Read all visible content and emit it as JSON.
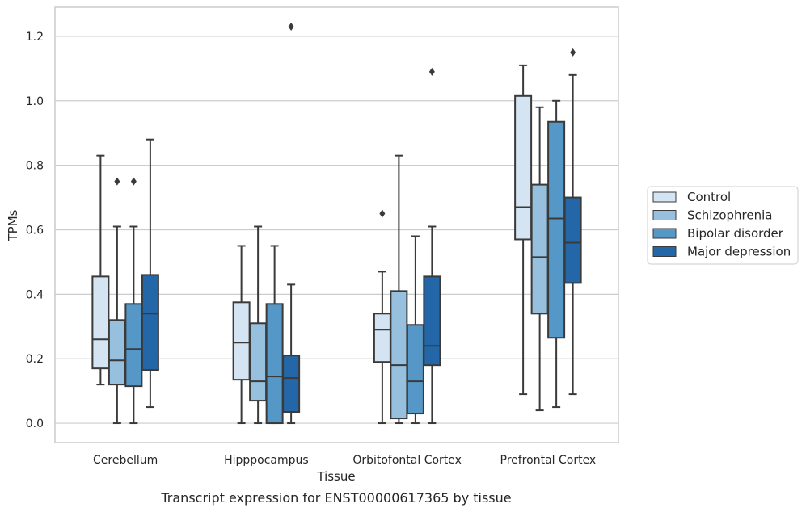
{
  "chart_data": {
    "type": "box",
    "title": "",
    "caption": "Transcript expression for ENST00000617365 by tissue",
    "xlabel": "Tissue",
    "ylabel": "TPMs",
    "ylim": [
      -0.06,
      1.29
    ],
    "yticks": [
      "0.0",
      "0.2",
      "0.4",
      "0.6",
      "0.8",
      "1.0",
      "1.2"
    ],
    "grid": true,
    "legend_position": "right",
    "categories": [
      "Cerebellum",
      "Hipppocampus",
      "Orbitofontal Cortex",
      "Prefrontal Cortex"
    ],
    "series": [
      {
        "name": "Control",
        "color": "#d4e4f3",
        "boxes": [
          {
            "q1": 0.17,
            "median": 0.26,
            "q3": 0.455,
            "whislo": 0.12,
            "whishi": 0.83,
            "fliers": []
          },
          {
            "q1": 0.135,
            "median": 0.25,
            "q3": 0.375,
            "whislo": 0.0,
            "whishi": 0.55,
            "fliers": []
          },
          {
            "q1": 0.19,
            "median": 0.29,
            "q3": 0.34,
            "whislo": 0.0,
            "whishi": 0.47,
            "fliers": [
              0.65
            ]
          },
          {
            "q1": 0.57,
            "median": 0.67,
            "q3": 1.015,
            "whislo": 0.09,
            "whishi": 1.11,
            "fliers": []
          }
        ]
      },
      {
        "name": "Schizophrenia",
        "color": "#96c0dd",
        "boxes": [
          {
            "q1": 0.12,
            "median": 0.195,
            "q3": 0.32,
            "whislo": 0.0,
            "whishi": 0.61,
            "fliers": [
              0.75
            ]
          },
          {
            "q1": 0.07,
            "median": 0.13,
            "q3": 0.31,
            "whislo": 0.0,
            "whishi": 0.61,
            "fliers": []
          },
          {
            "q1": 0.015,
            "median": 0.18,
            "q3": 0.41,
            "whislo": 0.0,
            "whishi": 0.83,
            "fliers": []
          },
          {
            "q1": 0.34,
            "median": 0.515,
            "q3": 0.74,
            "whislo": 0.04,
            "whishi": 0.98,
            "fliers": []
          }
        ]
      },
      {
        "name": "Bipolar disorder",
        "color": "#5598c7",
        "boxes": [
          {
            "q1": 0.115,
            "median": 0.23,
            "q3": 0.37,
            "whislo": 0.0,
            "whishi": 0.61,
            "fliers": [
              0.75
            ]
          },
          {
            "q1": 0.0,
            "median": 0.145,
            "q3": 0.37,
            "whislo": 0.0,
            "whishi": 0.55,
            "fliers": []
          },
          {
            "q1": 0.03,
            "median": 0.13,
            "q3": 0.305,
            "whislo": 0.0,
            "whishi": 0.58,
            "fliers": []
          },
          {
            "q1": 0.265,
            "median": 0.635,
            "q3": 0.935,
            "whislo": 0.05,
            "whishi": 1.0,
            "fliers": []
          }
        ]
      },
      {
        "name": "Major depression",
        "color": "#2467a8",
        "boxes": [
          {
            "q1": 0.165,
            "median": 0.34,
            "q3": 0.46,
            "whislo": 0.05,
            "whishi": 0.88,
            "fliers": []
          },
          {
            "q1": 0.035,
            "median": 0.14,
            "q3": 0.21,
            "whislo": 0.0,
            "whishi": 0.43,
            "fliers": [
              1.23
            ]
          },
          {
            "q1": 0.18,
            "median": 0.24,
            "q3": 0.455,
            "whislo": 0.0,
            "whishi": 0.61,
            "fliers": [
              1.09
            ]
          },
          {
            "q1": 0.435,
            "median": 0.56,
            "q3": 0.7,
            "whislo": 0.09,
            "whishi": 1.08,
            "fliers": [
              1.15
            ]
          }
        ]
      }
    ]
  }
}
